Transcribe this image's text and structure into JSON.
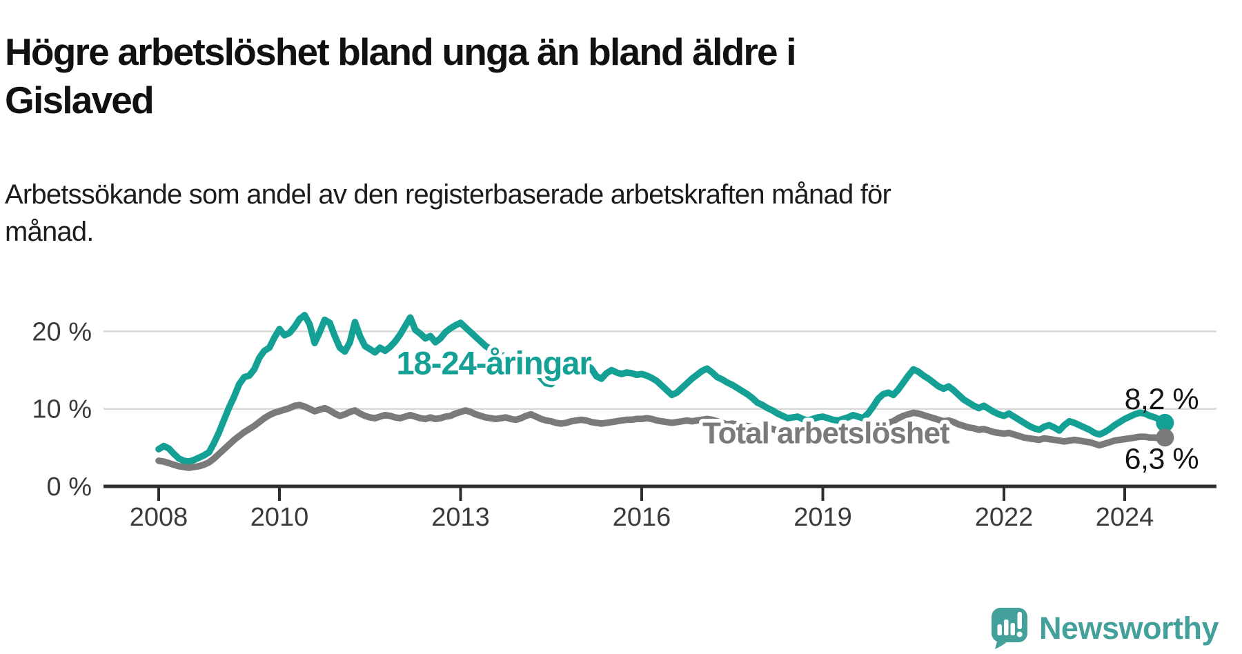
{
  "header": {
    "title": "Högre arbetslöshet bland unga än bland äldre i Gislaved",
    "subtitle": "Arbetssökande som andel av den registerbaserade arbetskraften månad för månad."
  },
  "chart_data": {
    "type": "line",
    "title": "Högre arbetslöshet bland unga än bland äldre i Gislaved",
    "x_unit": "month",
    "x_start_year": 2008,
    "x_start_month": 1,
    "x_end_year": 2024,
    "x_end_month": 9,
    "xlim": [
      2007.1,
      2025.45
    ],
    "ylim": [
      0,
      23
    ],
    "grid": "horizontal",
    "x_ticks": [
      {
        "value": 2008,
        "label": "2008"
      },
      {
        "value": 2010,
        "label": "2010"
      },
      {
        "value": 2013,
        "label": "2013"
      },
      {
        "value": 2016,
        "label": "2016"
      },
      {
        "value": 2019,
        "label": "2019"
      },
      {
        "value": 2022,
        "label": "2022"
      },
      {
        "value": 2024,
        "label": "2024"
      }
    ],
    "y_ticks": [
      {
        "value": 0,
        "label": "0 %"
      },
      {
        "value": 10,
        "label": "10 %"
      },
      {
        "value": 20,
        "label": "20 %"
      }
    ],
    "series": [
      {
        "name": "18-24-åringar",
        "color": "#14a094",
        "end_label": "8,2 %",
        "end_value": 8.2,
        "label_pos": {
          "year": 2013.55,
          "value": 15.9
        },
        "values": [
          4.8,
          5.2,
          4.9,
          4.2,
          3.6,
          3.3,
          3.2,
          3.4,
          3.7,
          4.0,
          4.4,
          5.6,
          7.0,
          8.6,
          10.2,
          11.6,
          13.2,
          14.1,
          14.3,
          15.1,
          16.6,
          17.5,
          17.9,
          19.2,
          20.3,
          19.5,
          19.8,
          20.6,
          21.6,
          22.1,
          20.9,
          18.5,
          19.9,
          21.5,
          21.1,
          19.4,
          17.9,
          17.4,
          18.6,
          21.2,
          19.4,
          18.1,
          17.7,
          17.3,
          17.9,
          17.5,
          18.0,
          18.7,
          19.6,
          20.7,
          21.8,
          20.2,
          19.7,
          19.1,
          19.4,
          18.6,
          19.1,
          19.9,
          20.4,
          20.8,
          21.1,
          20.5,
          19.9,
          19.3,
          18.7,
          18.1,
          17.7,
          17.3,
          17.0,
          16.7,
          16.5,
          16.3,
          16.1,
          15.8,
          15.4,
          14.8,
          14.0,
          13.3,
          13.2,
          13.8,
          14.4,
          14.9,
          15.3,
          15.6,
          15.3,
          15.7,
          15.2,
          14.2,
          13.9,
          14.6,
          15.0,
          14.7,
          14.5,
          14.7,
          14.6,
          14.4,
          14.5,
          14.3,
          14.0,
          13.6,
          13.0,
          12.4,
          11.8,
          12.1,
          12.7,
          13.3,
          13.9,
          14.4,
          14.9,
          15.2,
          14.7,
          14.1,
          13.8,
          13.4,
          13.1,
          12.7,
          12.3,
          11.9,
          11.4,
          10.8,
          10.5,
          10.1,
          9.8,
          9.4,
          9.1,
          8.8,
          8.9,
          9.0,
          8.7,
          8.5,
          8.7,
          8.9,
          9.0,
          8.8,
          8.6,
          8.5,
          8.7,
          8.9,
          9.2,
          9.0,
          8.8,
          9.4,
          10.3,
          11.3,
          11.9,
          12.1,
          11.8,
          12.5,
          13.4,
          14.3,
          15.1,
          14.8,
          14.3,
          13.9,
          13.4,
          12.9,
          12.6,
          12.9,
          12.4,
          11.8,
          11.2,
          10.8,
          10.4,
          10.1,
          10.4,
          10.0,
          9.6,
          9.3,
          9.1,
          9.4,
          9.0,
          8.6,
          8.2,
          7.8,
          7.5,
          7.3,
          7.7,
          7.9,
          7.6,
          7.2,
          7.9,
          8.4,
          8.2,
          7.9,
          7.6,
          7.3,
          6.9,
          6.7,
          7.0,
          7.4,
          7.9,
          8.3,
          8.7,
          9.0,
          9.3,
          9.5,
          9.4,
          9.1,
          8.9,
          8.6,
          8.2
        ]
      },
      {
        "name": "Total arbetslöshet",
        "color": "#7a7a7a",
        "end_label": "6,3 %",
        "end_value": 6.3,
        "label_pos": {
          "year": 2019.05,
          "value": 6.9
        },
        "values": [
          3.3,
          3.2,
          3.0,
          2.8,
          2.6,
          2.5,
          2.4,
          2.5,
          2.6,
          2.8,
          3.1,
          3.6,
          4.2,
          4.8,
          5.4,
          6.0,
          6.5,
          7.0,
          7.4,
          7.8,
          8.3,
          8.8,
          9.2,
          9.5,
          9.7,
          9.9,
          10.1,
          10.4,
          10.5,
          10.3,
          10.0,
          9.7,
          9.9,
          10.1,
          9.8,
          9.4,
          9.1,
          9.3,
          9.6,
          9.8,
          9.4,
          9.1,
          8.9,
          8.8,
          9.0,
          9.2,
          9.1,
          8.9,
          8.8,
          9.0,
          9.2,
          9.0,
          8.8,
          8.7,
          8.9,
          8.7,
          8.8,
          9.0,
          9.1,
          9.4,
          9.6,
          9.8,
          9.6,
          9.3,
          9.1,
          8.9,
          8.8,
          8.7,
          8.8,
          8.9,
          8.7,
          8.6,
          8.8,
          9.1,
          9.3,
          9.0,
          8.7,
          8.5,
          8.4,
          8.2,
          8.1,
          8.2,
          8.4,
          8.5,
          8.6,
          8.5,
          8.3,
          8.2,
          8.1,
          8.2,
          8.3,
          8.4,
          8.5,
          8.6,
          8.6,
          8.7,
          8.7,
          8.8,
          8.7,
          8.5,
          8.4,
          8.3,
          8.2,
          8.3,
          8.4,
          8.5,
          8.4,
          8.5,
          8.6,
          8.7,
          8.6,
          8.4,
          8.2,
          8.0,
          8.1,
          8.0,
          7.9,
          7.8,
          7.7,
          7.6,
          7.5,
          7.6,
          7.4,
          7.2,
          7.0,
          6.9,
          7.0,
          6.9,
          6.8,
          6.7,
          6.8,
          6.9,
          7.0,
          6.9,
          6.8,
          6.7,
          6.8,
          6.9,
          7.0,
          7.1,
          7.2,
          7.3,
          7.5,
          7.8,
          8.0,
          8.2,
          8.4,
          8.8,
          9.1,
          9.3,
          9.5,
          9.4,
          9.2,
          9.0,
          8.8,
          8.6,
          8.4,
          8.5,
          8.3,
          8.0,
          7.8,
          7.6,
          7.5,
          7.3,
          7.4,
          7.2,
          7.0,
          6.9,
          6.8,
          6.9,
          6.7,
          6.5,
          6.3,
          6.2,
          6.1,
          6.0,
          6.2,
          6.1,
          6.0,
          5.9,
          5.8,
          5.9,
          6.0,
          5.9,
          5.8,
          5.7,
          5.5,
          5.3,
          5.5,
          5.7,
          5.9,
          6.0,
          6.1,
          6.2,
          6.3,
          6.4,
          6.4,
          6.3,
          6.3,
          6.2,
          6.3
        ]
      }
    ],
    "colors": {
      "grid": "#d9d9d9",
      "axis": "#2e2e2e",
      "tick_label": "#3b3b3b",
      "value_label": "#141414"
    }
  },
  "footer": {
    "brand": "Newsworthy",
    "brand_color": "#43a09b"
  }
}
